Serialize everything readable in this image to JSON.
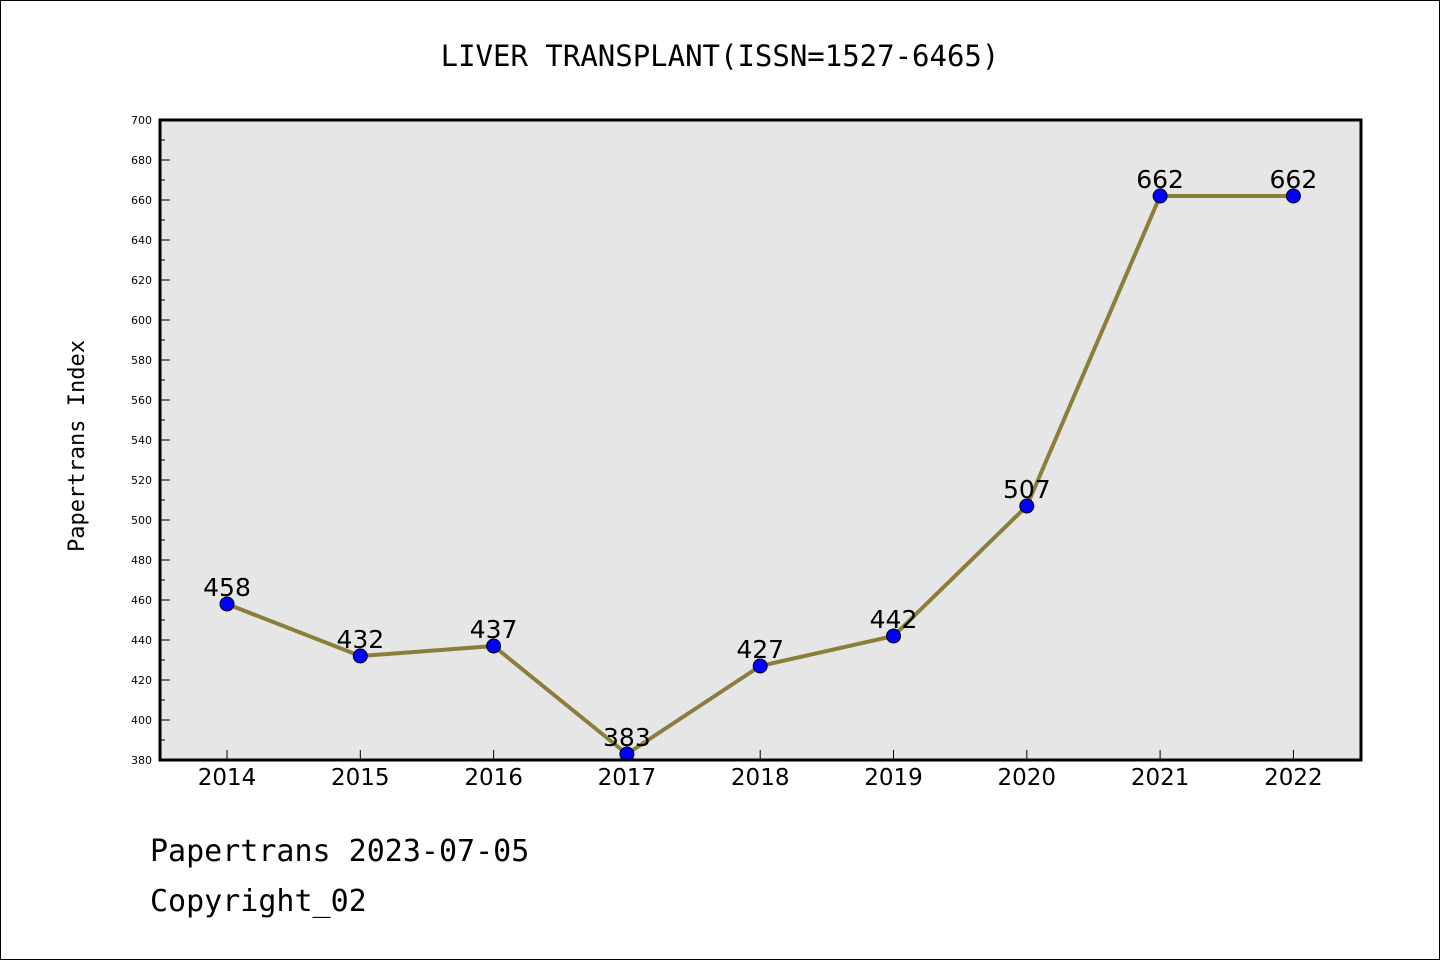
{
  "chart_data": {
    "type": "line",
    "title": "LIVER TRANSPLANT(ISSN=1527-6465)",
    "xlabel": "",
    "ylabel": "Papertrans Index",
    "categories": [
      "2014",
      "2015",
      "2016",
      "2017",
      "2018",
      "2019",
      "2020",
      "2021",
      "2022"
    ],
    "series": [
      {
        "values": [
          458,
          432,
          437,
          383,
          427,
          442,
          507,
          662,
          662
        ]
      }
    ],
    "ylim": [
      380,
      700
    ],
    "yticks": [
      380,
      400,
      420,
      440,
      460,
      480,
      500,
      520,
      540,
      560,
      580,
      600,
      620,
      640,
      660,
      680,
      700
    ],
    "grid": false,
    "legend": "none",
    "data_labels": true,
    "colors": {
      "line": "#8B7D3A",
      "marker": "#0000FF",
      "marker_edge": "#000000",
      "plot_background": "#E6E6E6"
    }
  },
  "footer": {
    "date_text": "Papertrans 2023-07-05",
    "copyright_text": "Copyright_02"
  }
}
